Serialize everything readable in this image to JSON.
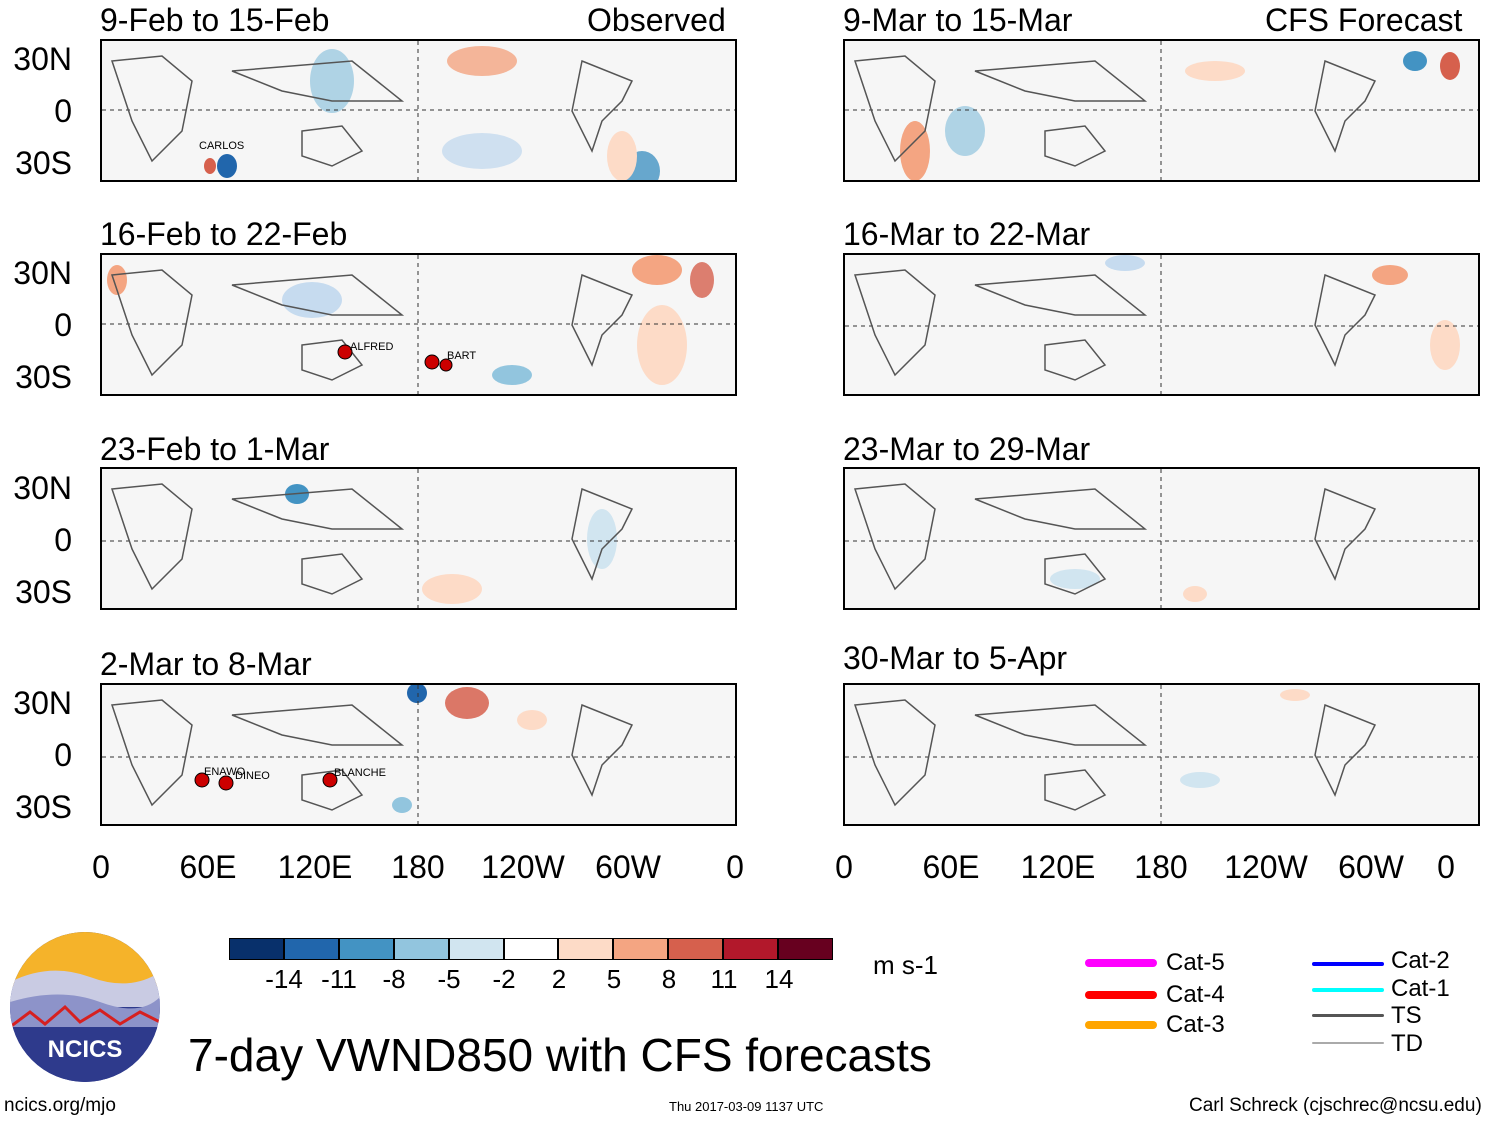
{
  "figure": {
    "title": "7-day VWND850 with CFS forecasts",
    "left_column_label": "Observed",
    "right_column_label": "CFS Forecast",
    "units": "m s-1",
    "website": "ncics.org/mjo",
    "timestamp": "Thu 2017-03-09 1137 UTC",
    "author": "Carl Schreck (cjschrec@ncsu.edu)",
    "logo_text": "NCICS"
  },
  "panels": [
    {
      "period": "9-Feb to 15-Feb",
      "storms": [
        "CARLOS"
      ]
    },
    {
      "period": "16-Feb to 22-Feb",
      "storms": [
        "ALFRED",
        "BART"
      ]
    },
    {
      "period": "23-Feb to 1-Mar",
      "storms": []
    },
    {
      "period": "2-Mar to 8-Mar",
      "storms": [
        "ENAWO",
        "DINEO",
        "BLANCHE"
      ]
    },
    {
      "period": "9-Mar to 15-Mar",
      "storms": []
    },
    {
      "period": "16-Mar to 22-Mar",
      "storms": []
    },
    {
      "period": "23-Mar to 29-Mar",
      "storms": []
    },
    {
      "period": "30-Mar to 5-Apr",
      "storms": []
    }
  ],
  "axes": {
    "lat_labels": [
      "30N",
      "0",
      "30S"
    ],
    "lon_labels": [
      "0",
      "60E",
      "120E",
      "180",
      "120W",
      "60W",
      "0"
    ]
  },
  "colorbar": {
    "labels": [
      "-14",
      "-11",
      "-8",
      "-5",
      "-2",
      "2",
      "5",
      "8",
      "11",
      "14"
    ],
    "colors": [
      "#08306b",
      "#2166ac",
      "#4393c3",
      "#92c5de",
      "#d1e5f0",
      "#ffffff",
      "#fddbc7",
      "#f4a582",
      "#d6604d",
      "#b2182b",
      "#67001f"
    ]
  },
  "legend": [
    {
      "label": "Cat-5",
      "color": "#ff00ff"
    },
    {
      "label": "Cat-4",
      "color": "#ff0000"
    },
    {
      "label": "Cat-3",
      "color": "#ffa500"
    },
    {
      "label": "Cat-2",
      "color": "#0000ff"
    },
    {
      "label": "Cat-1",
      "color": "#00ffff"
    },
    {
      "label": "TS",
      "color": "#555555"
    },
    {
      "label": "TD",
      "color": "#aaaaaa"
    }
  ]
}
